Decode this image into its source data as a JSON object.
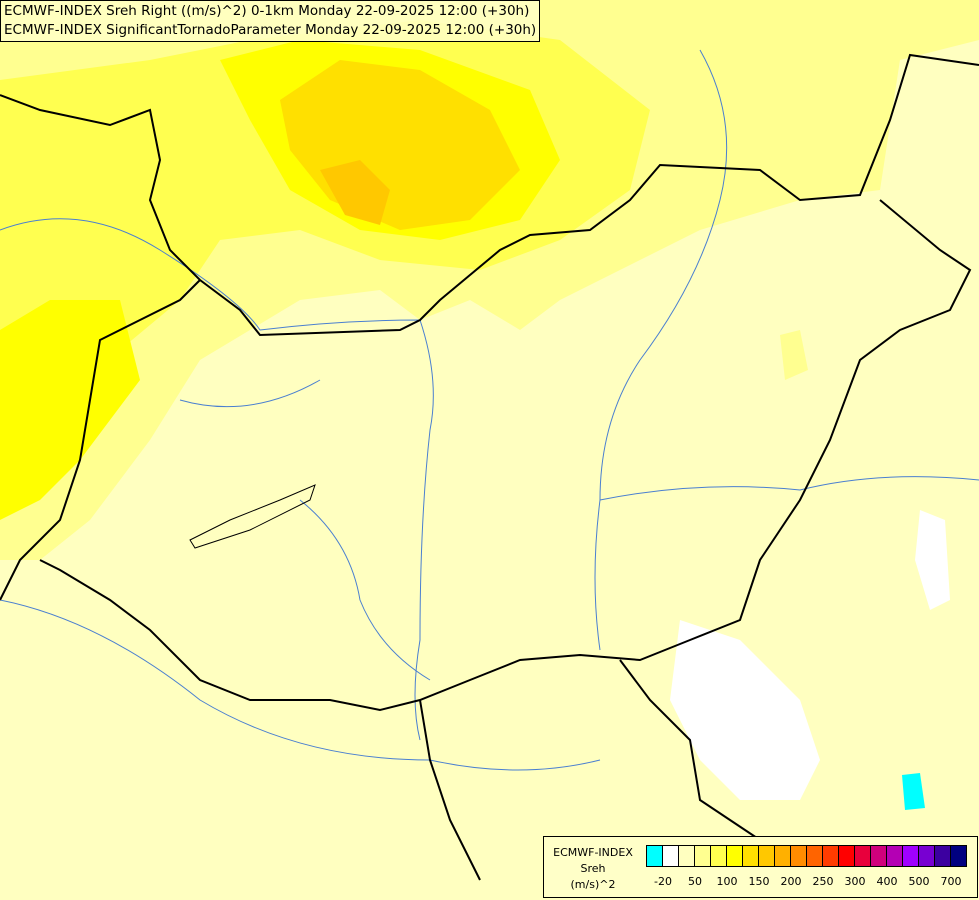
{
  "title": {
    "line1": "ECMWF-INDEX Sreh Right ((m/s)^2) 0-1km Monday 22-09-2025 12:00 (+30h)",
    "line2": "ECMWF-INDEX SignificantTornadoParameter Monday 22-09-2025 12:00 (+30h)"
  },
  "legend": {
    "line1": "ECMWF-INDEX",
    "line2": "Sreh",
    "line3": "(m/s)^2",
    "colors": [
      "#00ffff",
      "#ffffff",
      "#ffffc0",
      "#ffff90",
      "#ffff50",
      "#ffff00",
      "#ffe000",
      "#ffc800",
      "#ffb000",
      "#ff8c00",
      "#ff6400",
      "#ff3c00",
      "#ff0000",
      "#e8003c",
      "#d0007c",
      "#b400b4",
      "#a000ff",
      "#7800d2",
      "#3c00a0",
      "#000080"
    ],
    "ticks": [
      "-20",
      "50",
      "100",
      "150",
      "200",
      "250",
      "300",
      "400",
      "500",
      "700"
    ]
  },
  "map": {
    "background_color": "#ffffc0",
    "border_color": "#000000",
    "river_color": "#4a7fd0"
  }
}
